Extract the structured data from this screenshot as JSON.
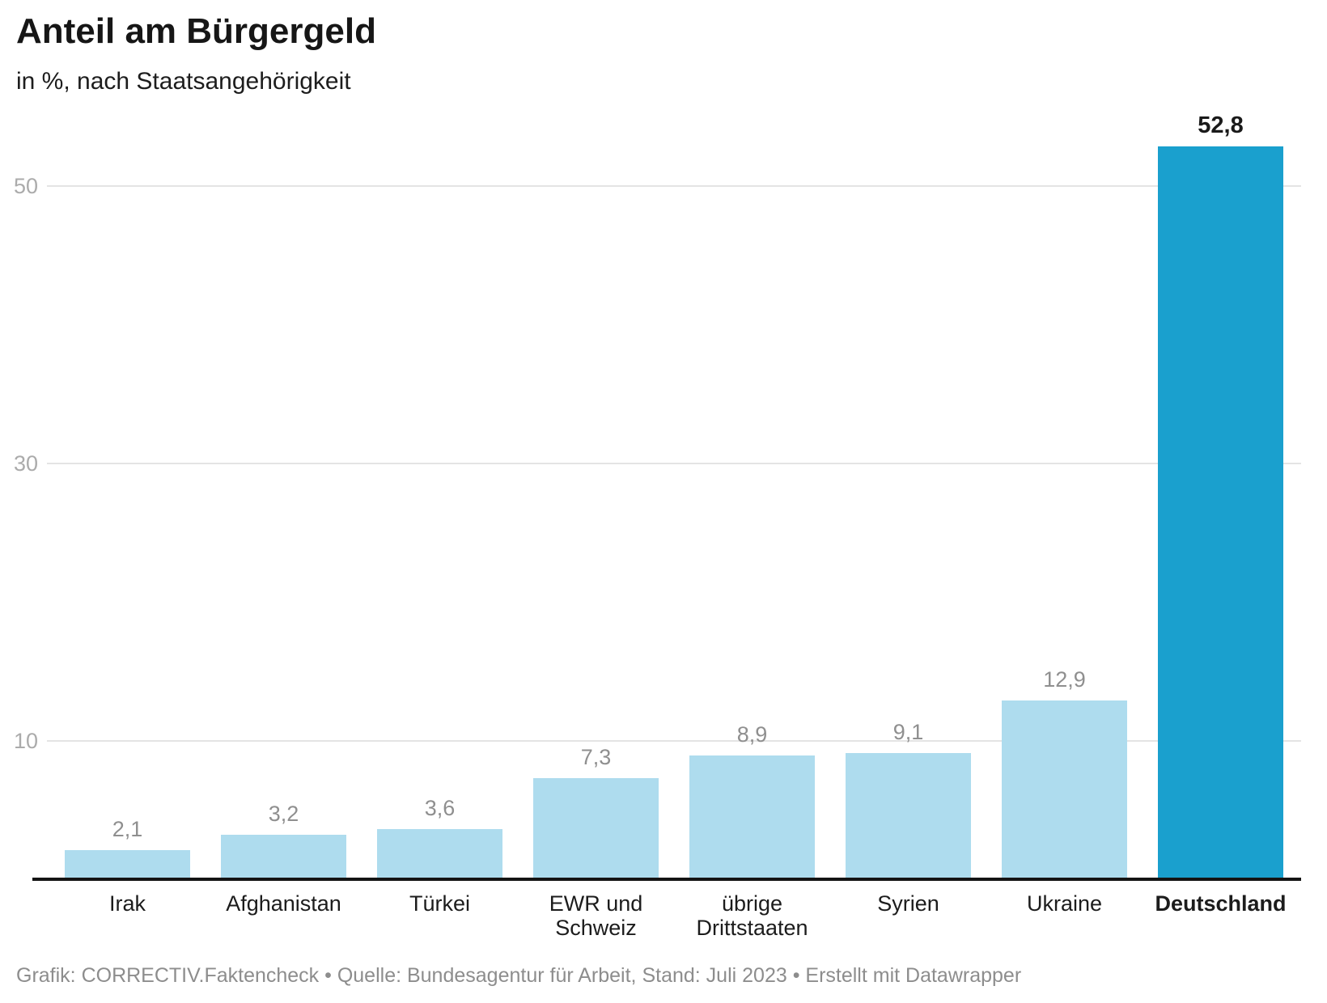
{
  "header": {
    "title": "Anteil am Bürgergeld",
    "subtitle": "in %, nach Staatsangehörigkeit"
  },
  "chart_data": {
    "type": "bar",
    "title": "Anteil am Bürgergeld",
    "subtitle": "in %, nach Staatsangehörigkeit",
    "xlabel": "",
    "ylabel": "in %",
    "categories": [
      "Irak",
      "Afghanistan",
      "Türkei",
      "EWR und Schweiz",
      "übrige Drittstaaten",
      "Syrien",
      "Ukraine",
      "Deutschland"
    ],
    "category_lines": [
      [
        "Irak"
      ],
      [
        "Afghanistan"
      ],
      [
        "Türkei"
      ],
      [
        "EWR und",
        "Schweiz"
      ],
      [
        "übrige",
        "Drittstaaten"
      ],
      [
        "Syrien"
      ],
      [
        "Ukraine"
      ],
      [
        "Deutschland"
      ]
    ],
    "values": [
      2.1,
      3.2,
      3.6,
      7.3,
      8.9,
      9.1,
      12.9,
      52.8
    ],
    "value_labels": [
      "2,1",
      "3,2",
      "3,6",
      "7,3",
      "8,9",
      "9,1",
      "12,9",
      "52,8"
    ],
    "highlighted_category": "Deutschland",
    "highlighted_index": 7,
    "ylim": [
      0,
      55
    ],
    "yticks": [
      10,
      30,
      50
    ],
    "grid": "horizontal",
    "legend": "none",
    "colors": {
      "bar": "#aedcee",
      "bar_highlight": "#1aa0ce",
      "value_label": "#8f8f8f",
      "value_label_highlight": "#1a1a1a",
      "tick_label": "#ababab",
      "gridline": "#e4e4e4",
      "axis_line": "#141414"
    }
  },
  "footer": {
    "text": "Grafik: CORRECTIV.Faktencheck • Quelle: Bundesagentur für Arbeit, Stand: Juli 2023 • Erstellt mit Datawrapper"
  }
}
